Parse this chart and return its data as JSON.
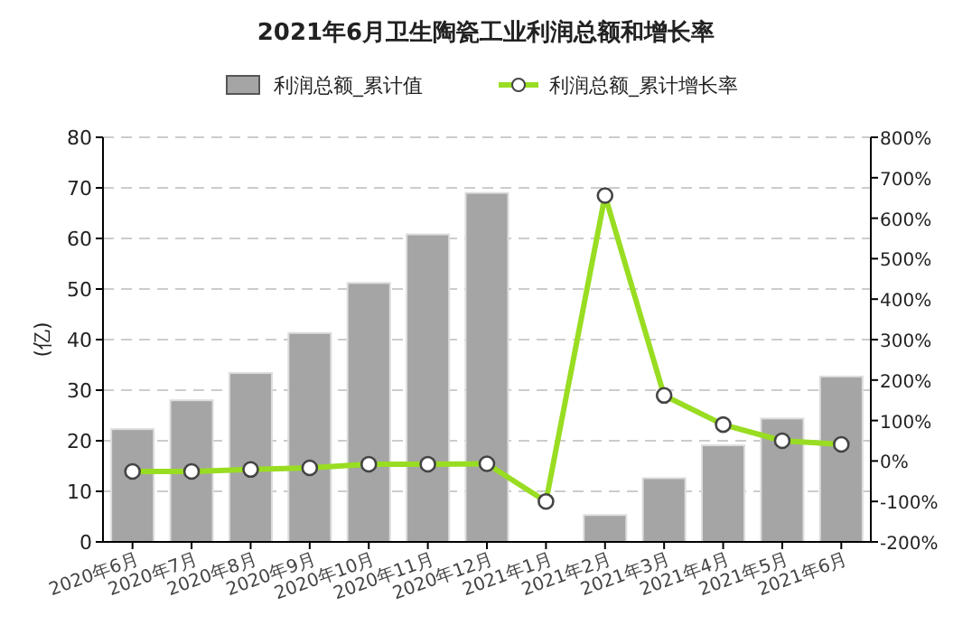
{
  "chart_data": {
    "type": "bar",
    "title": "2021年6月卫生陶瓷工业利润总额和增长率",
    "ylabel": "(亿)",
    "categories": [
      "2020年6月",
      "2020年7月",
      "2020年8月",
      "2020年9月",
      "2020年10月",
      "2020年11月",
      "2020年12月",
      "2021年1月",
      "2021年2月",
      "2021年3月",
      "2021年4月",
      "2021年5月",
      "2021年6月"
    ],
    "series": [
      {
        "name": "利润总额_累计值",
        "color": "#a5a5a5",
        "values": [
          22.3,
          28,
          33.4,
          41.3,
          51.2,
          60.8,
          69,
          null,
          5.3,
          12.6,
          19.1,
          24.4,
          32.7
        ]
      },
      {
        "name": "利润总额_累计增长率",
        "type": "line",
        "axis": "y2",
        "color": "#99dd22",
        "marker": "circle",
        "values": [
          -26,
          -26,
          -21,
          -17,
          -8,
          -8,
          -7,
          -100,
          656,
          162,
          90,
          50,
          41
        ]
      }
    ],
    "ylim": [
      0,
      80
    ],
    "yticks": [
      0,
      10,
      20,
      30,
      40,
      50,
      60,
      70,
      80
    ],
    "y2lim": [
      -200,
      800
    ],
    "y2ticks": [
      {
        "value": -200,
        "label": "-200%"
      },
      {
        "value": -100,
        "label": "-100%"
      },
      {
        "value": 0,
        "label": "0%"
      },
      {
        "value": 100,
        "label": "100%"
      },
      {
        "value": 200,
        "label": "200%"
      },
      {
        "value": 300,
        "label": "300%"
      },
      {
        "value": 400,
        "label": "400%"
      },
      {
        "value": 500,
        "label": "500%"
      },
      {
        "value": 600,
        "label": "600%"
      },
      {
        "value": 700,
        "label": "700%"
      },
      {
        "value": 800,
        "label": "800%"
      }
    ],
    "grid": "y",
    "legend": "top"
  }
}
